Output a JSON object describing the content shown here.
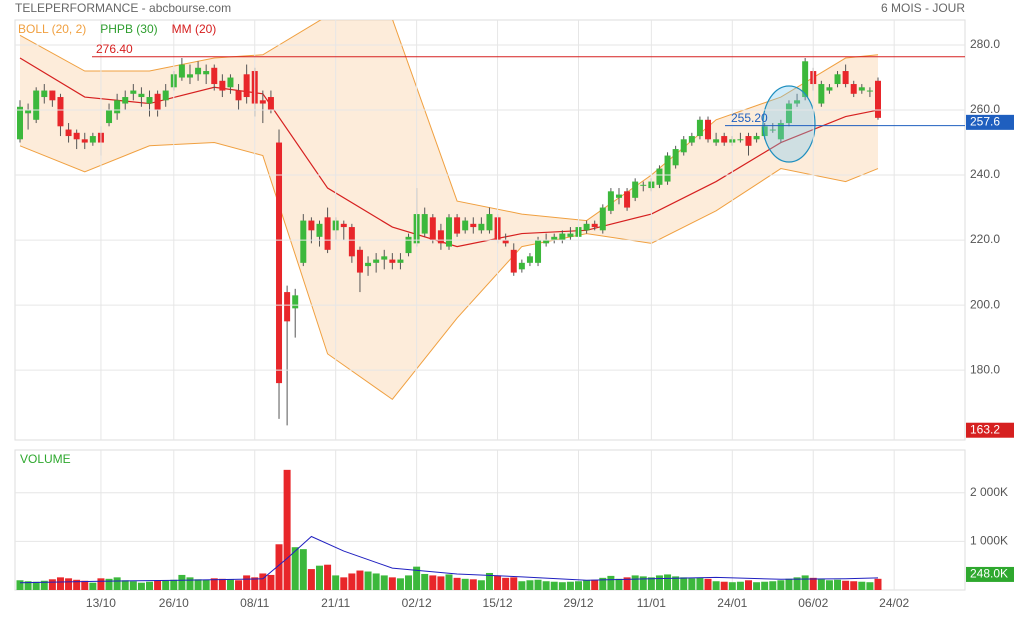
{
  "header": {
    "title": "TELEPERFORMANCE - abcbourse.com",
    "period": "6 MOIS - JOUR"
  },
  "chart_data": {
    "type": "candlestick",
    "legend": [
      {
        "name": "BOLL (20, 2)",
        "color": "#f0a040"
      },
      {
        "name": "PHPB (30)",
        "color": "#2e9e2e"
      },
      {
        "name": "MM (20)",
        "color": "#d62020"
      }
    ],
    "ylim": [
      158.5,
      287.7
    ],
    "yticks": [
      {
        "value": 180,
        "label": "180.0"
      },
      {
        "value": 200,
        "label": "200.0"
      },
      {
        "value": 220,
        "label": "220.0"
      },
      {
        "value": 240,
        "label": "240.0"
      },
      {
        "value": 260,
        "label": "260.0"
      },
      {
        "value": 280,
        "label": "280.0"
      }
    ],
    "x_labels": {
      "labels": [
        "13/10",
        "26/10",
        "08/11",
        "21/11",
        "02/12",
        "15/12",
        "29/12",
        "11/01",
        "24/01",
        "06/02",
        "24/02"
      ],
      "index": [
        10,
        19,
        29,
        39,
        49,
        59,
        69,
        78,
        88,
        98,
        108
      ]
    },
    "up_color": "#3cb83c",
    "down_color": "#e8262a",
    "ohlc": [
      [
        251,
        263,
        250,
        261
      ],
      [
        259,
        262,
        254,
        260
      ],
      [
        257,
        267,
        256,
        266
      ],
      [
        264,
        268,
        262,
        266
      ],
      [
        266,
        266,
        261,
        263
      ],
      [
        264,
        265,
        252,
        255
      ],
      [
        254,
        256,
        250,
        252
      ],
      [
        253,
        254,
        248,
        251
      ],
      [
        251,
        253,
        248,
        250
      ],
      [
        250,
        253,
        249,
        252
      ],
      [
        253,
        255,
        246,
        250
      ],
      [
        256,
        262,
        255,
        260
      ],
      [
        259,
        265,
        257,
        263
      ],
      [
        262,
        266,
        260,
        264
      ],
      [
        265,
        268,
        263,
        266
      ],
      [
        264,
        267,
        261,
        265
      ],
      [
        262,
        266,
        258,
        264
      ],
      [
        265,
        266,
        258,
        260
      ],
      [
        263,
        268,
        261,
        266
      ],
      [
        267,
        272,
        266,
        271
      ],
      [
        270,
        276,
        269,
        274
      ],
      [
        270,
        274,
        268,
        271
      ],
      [
        271,
        275,
        269,
        273
      ],
      [
        271,
        274,
        268,
        272
      ],
      [
        273,
        274,
        266,
        268
      ],
      [
        269,
        271,
        264,
        266
      ],
      [
        267,
        271,
        265,
        270
      ],
      [
        266,
        268,
        260,
        263
      ],
      [
        271,
        274,
        262,
        264
      ],
      [
        272,
        273,
        258,
        262
      ],
      [
        263,
        266,
        256,
        262
      ],
      [
        264,
        266,
        259,
        260
      ],
      [
        250,
        254,
        165,
        176
      ],
      [
        204,
        206,
        163,
        195
      ],
      [
        199,
        205,
        190,
        203
      ],
      [
        213,
        228,
        212,
        226
      ],
      [
        226,
        227,
        219,
        223
      ],
      [
        221,
        226,
        218,
        225
      ],
      [
        227,
        230,
        216,
        217
      ],
      [
        223,
        227,
        220,
        226
      ],
      [
        225,
        226,
        220,
        224
      ],
      [
        224,
        225,
        213,
        215
      ],
      [
        217,
        218,
        204,
        210
      ],
      [
        212,
        215,
        209,
        213
      ],
      [
        213,
        216,
        210,
        214
      ],
      [
        214,
        217,
        211,
        215
      ],
      [
        214,
        216,
        211,
        213
      ],
      [
        213,
        216,
        211,
        214
      ],
      [
        216,
        222,
        215,
        221
      ],
      [
        219,
        236,
        218,
        228
      ],
      [
        222,
        230,
        221,
        228
      ],
      [
        227,
        228,
        219,
        220
      ],
      [
        223,
        225,
        217,
        219
      ],
      [
        218,
        228,
        217,
        227
      ],
      [
        227,
        228,
        221,
        222
      ],
      [
        223,
        227,
        222,
        226
      ],
      [
        225,
        227,
        222,
        224
      ],
      [
        223,
        227,
        222,
        225
      ],
      [
        223,
        230,
        222,
        228
      ],
      [
        227,
        228,
        219,
        220
      ],
      [
        220,
        222,
        218,
        219
      ],
      [
        217,
        219,
        209,
        210
      ],
      [
        211,
        214,
        210,
        213
      ],
      [
        213,
        216,
        212,
        215
      ],
      [
        213,
        221,
        212,
        220
      ],
      [
        219,
        222,
        218,
        220
      ],
      [
        220,
        222,
        219,
        221
      ],
      [
        220,
        223,
        219,
        222
      ],
      [
        221,
        224,
        220,
        222
      ],
      [
        221,
        225,
        220,
        224
      ],
      [
        223,
        226,
        222,
        225
      ],
      [
        225,
        226,
        223,
        224
      ],
      [
        223,
        231,
        222,
        230
      ],
      [
        229,
        236,
        228,
        235
      ],
      [
        233,
        236,
        231,
        234
      ],
      [
        235,
        236,
        229,
        230
      ],
      [
        233,
        239,
        232,
        238
      ],
      [
        237,
        238,
        235,
        237
      ],
      [
        236,
        239,
        235,
        238
      ],
      [
        237,
        243,
        236,
        242
      ],
      [
        238,
        247,
        237,
        246
      ],
      [
        243,
        249,
        242,
        248
      ],
      [
        247,
        252,
        246,
        251
      ],
      [
        250,
        253,
        249,
        252
      ],
      [
        252,
        258,
        251,
        257
      ],
      [
        257,
        258,
        250,
        251
      ],
      [
        250,
        253,
        249,
        251
      ],
      [
        252,
        253,
        249,
        250
      ],
      [
        250,
        252,
        249,
        251
      ],
      [
        251,
        253,
        250,
        251
      ],
      [
        252,
        253,
        246,
        249
      ],
      [
        251,
        253,
        250,
        252
      ],
      [
        252,
        256,
        251,
        255
      ],
      [
        254,
        256,
        253,
        254
      ],
      [
        251,
        257,
        250,
        256
      ],
      [
        256,
        263,
        255,
        262
      ],
      [
        262,
        265,
        261,
        263
      ],
      [
        264,
        276,
        263,
        275
      ],
      [
        272,
        273,
        266,
        268
      ],
      [
        262,
        269,
        261,
        268
      ],
      [
        266,
        268,
        265,
        267
      ],
      [
        268,
        272,
        267,
        271
      ],
      [
        272,
        274,
        267,
        268
      ],
      [
        268,
        269,
        264,
        265
      ],
      [
        266,
        268,
        265,
        267
      ],
      [
        266,
        267,
        264,
        266
      ],
      [
        269,
        270,
        257,
        257.6
      ]
    ],
    "overlays": {
      "x": [
        0,
        8,
        16,
        24,
        30,
        38,
        46,
        54,
        62,
        70,
        78,
        86,
        94,
        102,
        106
      ],
      "upper": [
        283,
        272,
        272,
        276,
        277,
        289,
        288,
        232,
        228,
        226,
        240,
        257,
        264,
        276,
        277
      ],
      "lower": [
        249,
        241,
        249,
        250,
        246,
        185,
        171,
        196,
        218,
        222,
        219,
        229,
        242,
        238,
        242
      ],
      "mm": [
        276,
        264,
        262,
        267,
        265,
        236,
        224,
        218,
        222,
        223,
        228,
        238,
        250,
        258,
        260
      ]
    },
    "levels": [
      {
        "value": 276.4,
        "label": "276.40",
        "color": "#d62020"
      },
      {
        "value": 255.2,
        "label": "255.20",
        "color": "#1f5fbf"
      }
    ],
    "last": {
      "value": 257.6,
      "label": "257.6",
      "color": "#1f5fbf"
    },
    "min": {
      "value": 163.2,
      "label": "163.2",
      "color": "#d62020"
    },
    "volume": {
      "title": "VOLUME",
      "ylim": [
        0,
        2878
      ],
      "yticks": [
        {
          "value": 1000,
          "label": "1 000K"
        },
        {
          "value": 2000,
          "label": "2 000K"
        }
      ],
      "values": [
        200,
        180,
        170,
        190,
        220,
        260,
        240,
        210,
        190,
        150,
        240,
        230,
        260,
        200,
        180,
        150,
        170,
        200,
        190,
        210,
        310,
        260,
        220,
        210,
        240,
        230,
        220,
        200,
        300,
        260,
        340,
        310,
        940,
        2470,
        880,
        840,
        430,
        500,
        520,
        300,
        260,
        340,
        400,
        380,
        340,
        300,
        260,
        240,
        300,
        480,
        330,
        300,
        280,
        320,
        250,
        230,
        220,
        200,
        350,
        300,
        250,
        260,
        180,
        200,
        210,
        180,
        170,
        160,
        170,
        180,
        200,
        210,
        250,
        290,
        230,
        260,
        300,
        280,
        260,
        300,
        320,
        280,
        260,
        240,
        250,
        230,
        180,
        170,
        160,
        170,
        200,
        160,
        170,
        180,
        200,
        230,
        260,
        300,
        250,
        220,
        200,
        210,
        190,
        180,
        170,
        160,
        230
      ],
      "ma": {
        "x": [
          0,
          10,
          20,
          30,
          33,
          36,
          40,
          46,
          54,
          62,
          70,
          78,
          86,
          94,
          102,
          106
        ],
        "values": [
          150,
          180,
          200,
          230,
          650,
          1100,
          800,
          450,
          330,
          270,
          200,
          230,
          260,
          220,
          230,
          248
        ],
        "color": "#2020c0"
      },
      "last": {
        "value": 248,
        "label": "248.0K",
        "color": "#2ea82e"
      }
    }
  }
}
